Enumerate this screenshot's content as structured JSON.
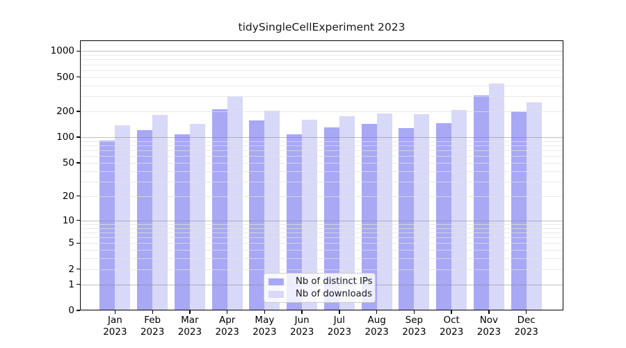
{
  "title": "tidySingleCellExperiment 2023",
  "colors": {
    "distinct_ips_bar": "#a8a8f5",
    "downloads_bar": "#d8d8f8",
    "decade_gridline": "rgba(128,128,128,0.5)",
    "minor_gridline": "rgba(225,225,225,0.75)",
    "axis": "#000000",
    "legend_border": "#cccccc"
  },
  "legend": {
    "items": [
      {
        "key": "distinct_ips",
        "label": "Nb of distinct IPs"
      },
      {
        "key": "downloads",
        "label": "Nb of downloads"
      }
    ]
  },
  "y_axis": {
    "tick_labels": [
      "1000",
      "500",
      "200",
      "100",
      "50",
      "20",
      "10",
      "5",
      "2",
      "1",
      "0"
    ],
    "tick_values": [
      1000,
      500,
      200,
      100,
      50,
      20,
      10,
      5,
      2,
      1,
      0
    ]
  },
  "x_axis": {
    "months": [
      "Jan",
      "Feb",
      "Mar",
      "Apr",
      "May",
      "Jun",
      "Jul",
      "Aug",
      "Sep",
      "Oct",
      "Nov",
      "Dec"
    ],
    "year": "2023"
  },
  "chart_data": {
    "type": "bar",
    "title": "tidySingleCellExperiment 2023",
    "categories": [
      "Jan 2023",
      "Feb 2023",
      "Mar 2023",
      "Apr 2023",
      "May 2023",
      "Jun 2023",
      "Jul 2023",
      "Aug 2023",
      "Sep 2023",
      "Oct 2023",
      "Nov 2023",
      "Dec 2023"
    ],
    "series": [
      {
        "name": "Nb of distinct IPs",
        "key": "distinct_ips",
        "values": [
          92,
          121,
          109,
          210,
          158,
          109,
          131,
          144,
          127,
          146,
          308,
          200
        ]
      },
      {
        "name": "Nb of downloads",
        "key": "downloads",
        "values": [
          138,
          182,
          144,
          293,
          203,
          161,
          176,
          190,
          184,
          206,
          420,
          256
        ]
      }
    ],
    "yscale": "log10(1+v)",
    "ylim": [
      0,
      1000
    ],
    "grid": true,
    "legend_position": "inside-bottom-center",
    "xlabel": "",
    "ylabel": ""
  }
}
